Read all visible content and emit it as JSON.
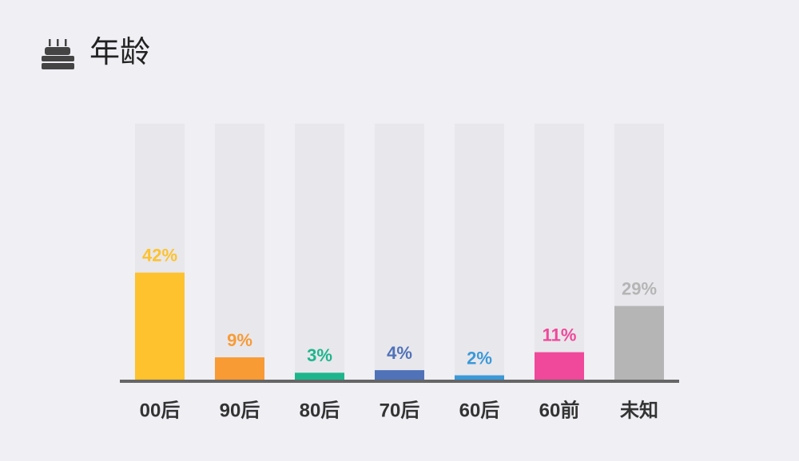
{
  "chart_data": {
    "type": "bar",
    "title": "年龄",
    "categories": [
      "00后",
      "90后",
      "80后",
      "70后",
      "60后",
      "60前",
      "未知"
    ],
    "values": [
      42,
      9,
      3,
      4,
      2,
      11,
      29
    ],
    "value_labels": [
      "42%",
      "9%",
      "3%",
      "4%",
      "2%",
      "11%",
      "29%"
    ],
    "colors": [
      "#fdc22e",
      "#f89b35",
      "#1db68c",
      "#4f72b8",
      "#3a99d8",
      "#f0489a",
      "#b5b5b5"
    ],
    "ylim": [
      0,
      100
    ]
  }
}
